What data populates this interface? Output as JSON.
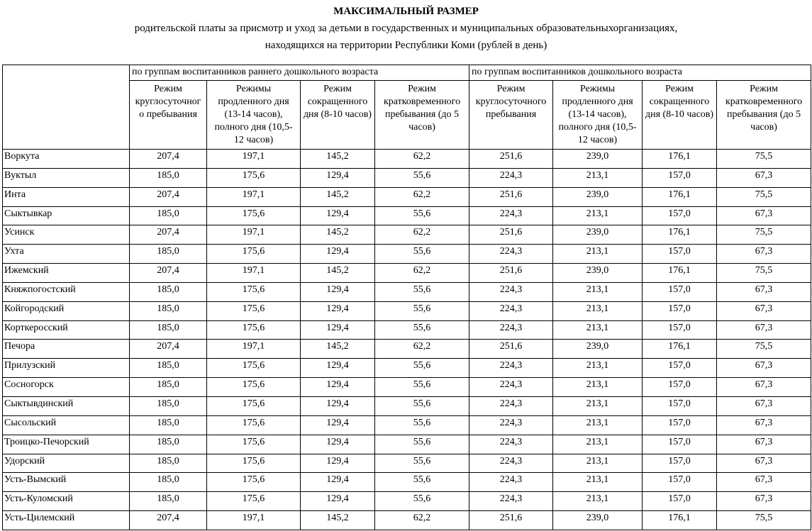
{
  "page": {
    "title": "МАКСИМАЛЬНЫЙ РАЗМЕР",
    "subtitle_line1": "родительской платы за присмотр и уход за детьми в государственных и муниципальных образовательныхорганизациях,",
    "subtitle_line2": "находящихся на территории Республики Коми (рублей в день)"
  },
  "table": {
    "group_headers": [
      "по группам воспитанников раннего дошкольного возраста",
      "по группам воспитанников дошкольного возраста"
    ],
    "column_headers": [
      "Режим\nкруглосуточног\nо пребывания",
      "Режимы\nпродленного дня\n(13-14 часов),\nполного дня (10,5-\n12 часов)",
      "Режим\nсокращенного\nдня (8-10 часов)",
      "Режим\nкратковременного\nпребывания (до 5\nчасов)",
      "Режим\nкруглосуточного\nпребывания",
      "Режимы\nпродленного дня\n(13-14 часов),\nполного дня (10,5-\n12 часов)",
      "Режим\nсокращенного\nдня (8-10 часов)",
      "Режим\nкратковременного\nпребывания (до 5\nчасов)"
    ],
    "rows": [
      {
        "name": "Воркута",
        "values": [
          "207,4",
          "197,1",
          "145,2",
          "62,2",
          "251,6",
          "239,0",
          "176,1",
          "75,5"
        ]
      },
      {
        "name": "Вуктыл",
        "values": [
          "185,0",
          "175,6",
          "129,4",
          "55,6",
          "224,3",
          "213,1",
          "157,0",
          "67,3"
        ]
      },
      {
        "name": "Инта",
        "values": [
          "207,4",
          "197,1",
          "145,2",
          "62,2",
          "251,6",
          "239,0",
          "176,1",
          "75,5"
        ]
      },
      {
        "name": "Сыктывкар",
        "values": [
          "185,0",
          "175,6",
          "129,4",
          "55,6",
          "224,3",
          "213,1",
          "157,0",
          "67,3"
        ]
      },
      {
        "name": "Усинск",
        "values": [
          "207,4",
          "197,1",
          "145,2",
          "62,2",
          "251,6",
          "239,0",
          "176,1",
          "75,5"
        ]
      },
      {
        "name": "Ухта",
        "values": [
          "185,0",
          "175,6",
          "129,4",
          "55,6",
          "224,3",
          "213,1",
          "157,0",
          "67,3"
        ]
      },
      {
        "name": "Ижемский",
        "values": [
          "207,4",
          "197,1",
          "145,2",
          "62,2",
          "251,6",
          "239,0",
          "176,1",
          "75,5"
        ]
      },
      {
        "name": "Княжпогостский",
        "values": [
          "185,0",
          "175,6",
          "129,4",
          "55,6",
          "224,3",
          "213,1",
          "157,0",
          "67,3"
        ]
      },
      {
        "name": "Койгородский",
        "values": [
          "185,0",
          "175,6",
          "129,4",
          "55,6",
          "224,3",
          "213,1",
          "157,0",
          "67,3"
        ]
      },
      {
        "name": "Корткеросский",
        "values": [
          "185,0",
          "175,6",
          "129,4",
          "55,6",
          "224,3",
          "213,1",
          "157,0",
          "67,3"
        ]
      },
      {
        "name": "Печора",
        "values": [
          "207,4",
          "197,1",
          "145,2",
          "62,2",
          "251,6",
          "239,0",
          "176,1",
          "75,5"
        ]
      },
      {
        "name": "Прилузский",
        "values": [
          "185,0",
          "175,6",
          "129,4",
          "55,6",
          "224,3",
          "213,1",
          "157,0",
          "67,3"
        ]
      },
      {
        "name": "Сосногорск",
        "values": [
          "185,0",
          "175,6",
          "129,4",
          "55,6",
          "224,3",
          "213,1",
          "157,0",
          "67,3"
        ]
      },
      {
        "name": "Сыктывдинский",
        "values": [
          "185,0",
          "175,6",
          "129,4",
          "55,6",
          "224,3",
          "213,1",
          "157,0",
          "67,3"
        ]
      },
      {
        "name": "Сысольский",
        "values": [
          "185,0",
          "175,6",
          "129,4",
          "55,6",
          "224,3",
          "213,1",
          "157,0",
          "67,3"
        ]
      },
      {
        "name": "Троицко-Печорский",
        "values": [
          "185,0",
          "175,6",
          "129,4",
          "55,6",
          "224,3",
          "213,1",
          "157,0",
          "67,3"
        ]
      },
      {
        "name": "Удорский",
        "values": [
          "185,0",
          "175,6",
          "129,4",
          "55,6",
          "224,3",
          "213,1",
          "157,0",
          "67,3"
        ]
      },
      {
        "name": "Усть-Вымский",
        "values": [
          "185,0",
          "175,6",
          "129,4",
          "55,6",
          "224,3",
          "213,1",
          "157,0",
          "67,3"
        ]
      },
      {
        "name": "Усть-Куломский",
        "values": [
          "185,0",
          "175,6",
          "129,4",
          "55,6",
          "224,3",
          "213,1",
          "157,0",
          "67,3"
        ]
      },
      {
        "name": "Усть-Цилемский",
        "values": [
          "207,4",
          "197,1",
          "145,2",
          "62,2",
          "251,6",
          "239,0",
          "176,1",
          "75,5"
        ]
      }
    ]
  }
}
